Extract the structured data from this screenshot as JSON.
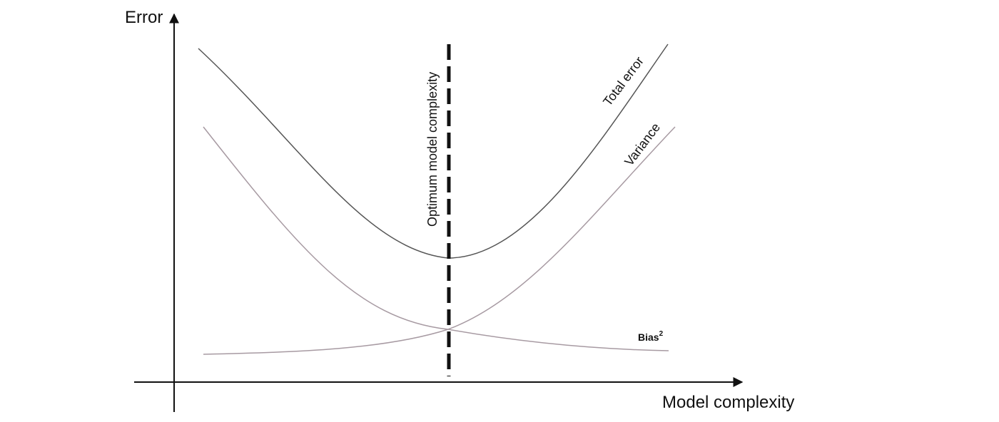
{
  "labels": {
    "y_axis": "Error",
    "x_axis": "Model complexity",
    "total_error": "Total error",
    "variance": "Variance",
    "bias": "Bias",
    "bias_superscript": "2",
    "optimum": "Optimum model complexity"
  },
  "colors": {
    "axis": "#111111",
    "total_error": "#555555",
    "variance": "#a79aa2",
    "bias": "#a79aa2",
    "optimum_line": "#111111"
  }
}
